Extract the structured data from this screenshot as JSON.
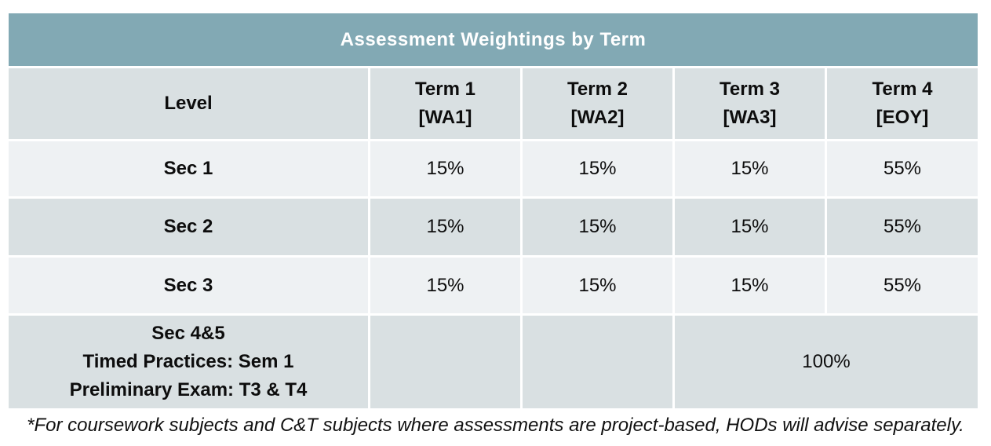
{
  "title": "Assessment Weightings by Term",
  "table": {
    "columns": [
      {
        "label": "Level"
      },
      {
        "label": "Term 1\n[WA1]"
      },
      {
        "label": "Term 2\n[WA2]"
      },
      {
        "label": "Term 3\n[WA3]"
      },
      {
        "label": "Term 4\n[EOY]"
      }
    ],
    "rows": [
      {
        "level": "Sec 1",
        "cells": [
          "15%",
          "15%",
          "15%",
          "55%"
        ]
      },
      {
        "level": "Sec 2",
        "cells": [
          "15%",
          "15%",
          "15%",
          "55%"
        ]
      },
      {
        "level": "Sec 3",
        "cells": [
          "15%",
          "15%",
          "15%",
          "55%"
        ]
      }
    ],
    "last_row": {
      "level": "Sec 4&5\nTimed Practices: Sem 1\nPreliminary Exam: T3 & T4",
      "term1": "",
      "term2": "",
      "merged_value": "100%"
    }
  },
  "footnote": "*For coursework subjects and C&T subjects where assessments are project-based, HODs will advise separately.",
  "colors": {
    "title_bg": "#82a9b4",
    "title_text": "#ffffff",
    "row_dark": "#d9e0e2",
    "row_light": "#eef1f3",
    "body_text": "#0d0d0d",
    "page_bg": "#ffffff"
  }
}
